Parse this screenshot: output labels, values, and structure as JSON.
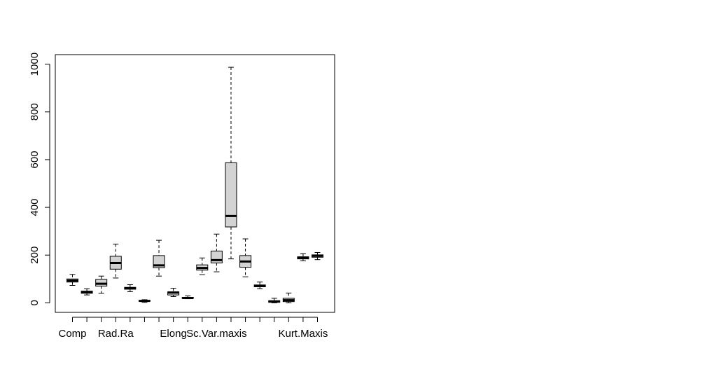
{
  "chart_data": {
    "type": "boxplot",
    "title": "",
    "xlabel": "",
    "ylabel": "",
    "ylim": [
      -40,
      1040
    ],
    "y_ticks": [
      0,
      200,
      400,
      600,
      800,
      1000
    ],
    "x_tick_labels": [
      {
        "position": 1,
        "label": "Comp"
      },
      {
        "position": 4,
        "label": "Rad.Ra"
      },
      {
        "position": 8,
        "label": "Elong"
      },
      {
        "position": 11,
        "label": "Sc.Var.maxis"
      },
      {
        "position": 17,
        "label": "Kurt.Maxis"
      }
    ],
    "box_fill": "#d3d3d3",
    "series": [
      {
        "position": 1,
        "whisker_low": 73,
        "q1": 87,
        "median": 93,
        "q3": 100,
        "whisker_high": 119
      },
      {
        "position": 2,
        "whisker_low": 33,
        "q1": 40,
        "median": 44,
        "q3": 49,
        "whisker_high": 59
      },
      {
        "position": 3,
        "whisker_low": 40,
        "q1": 70,
        "median": 80,
        "q3": 98,
        "whisker_high": 112
      },
      {
        "position": 4,
        "whisker_low": 104,
        "q1": 141,
        "median": 167,
        "q3": 195,
        "whisker_high": 246
      },
      {
        "position": 5,
        "whisker_low": 47,
        "q1": 57,
        "median": 61,
        "q3": 65,
        "whisker_high": 76
      },
      {
        "position": 6,
        "whisker_low": 2,
        "q1": 7,
        "median": 8,
        "q3": 10,
        "whisker_high": 13
      },
      {
        "position": 7,
        "whisker_low": 112,
        "q1": 147,
        "median": 157,
        "q3": 198,
        "whisker_high": 262
      },
      {
        "position": 8,
        "whisker_low": 26,
        "q1": 33,
        "median": 43,
        "q3": 46,
        "whisker_high": 61
      },
      {
        "position": 9,
        "whisker_low": 17,
        "q1": 19,
        "median": 20,
        "q3": 23,
        "whisker_high": 29
      },
      {
        "position": 10,
        "whisker_low": 118,
        "q1": 137,
        "median": 146,
        "q3": 159,
        "whisker_high": 188
      },
      {
        "position": 11,
        "whisker_low": 130,
        "q1": 167,
        "median": 179,
        "q3": 217,
        "whisker_high": 288
      },
      {
        "position": 12,
        "whisker_low": 184,
        "q1": 318,
        "median": 364,
        "q3": 587,
        "whisker_high": 987
      },
      {
        "position": 13,
        "whisker_low": 109,
        "q1": 149,
        "median": 173,
        "q3": 198,
        "whisker_high": 268
      },
      {
        "position": 14,
        "whisker_low": 59,
        "q1": 67,
        "median": 71,
        "q3": 75,
        "whisker_high": 87
      },
      {
        "position": 15,
        "whisker_low": 0,
        "q1": 2,
        "median": 6,
        "q3": 9,
        "whisker_high": 19
      },
      {
        "position": 16,
        "whisker_low": 0,
        "q1": 5,
        "median": 11,
        "q3": 19,
        "whisker_high": 41
      },
      {
        "position": 17,
        "whisker_low": 176,
        "q1": 184,
        "median": 188,
        "q3": 193,
        "whisker_high": 206
      },
      {
        "position": 18,
        "whisker_low": 181,
        "q1": 191,
        "median": 197,
        "q3": 201,
        "whisker_high": 211
      }
    ]
  }
}
